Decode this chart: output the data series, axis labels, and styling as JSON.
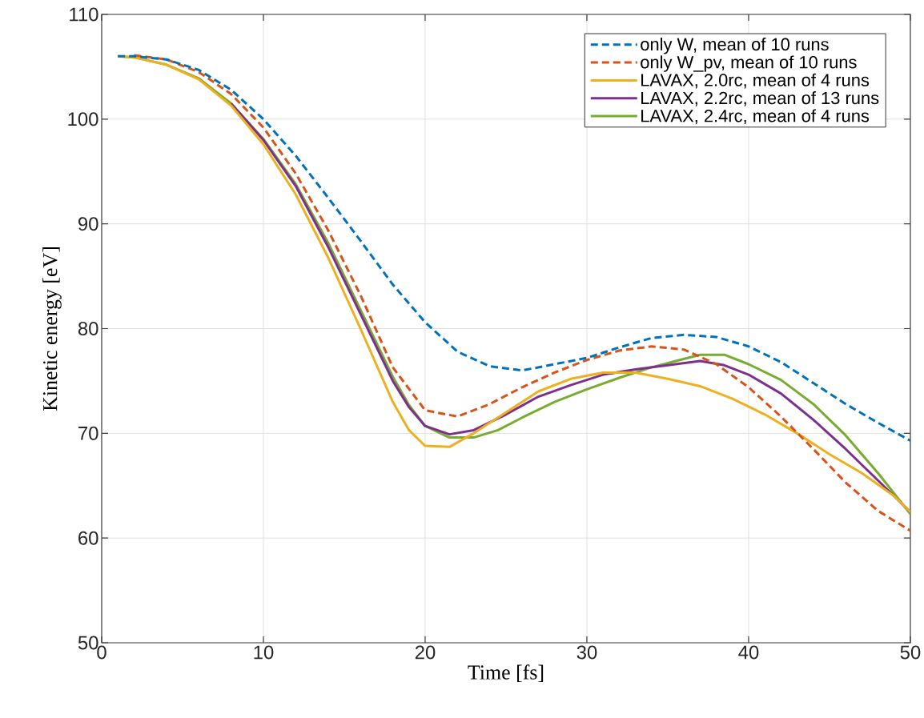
{
  "chart_data": {
    "type": "line",
    "xlabel": "Time [fs]",
    "ylabel": "Kinetic energy [eV]",
    "xlim": [
      0,
      50
    ],
    "ylim": [
      50,
      110
    ],
    "xticks": [
      0,
      10,
      20,
      30,
      40,
      50
    ],
    "yticks": [
      50,
      60,
      70,
      80,
      90,
      100,
      110
    ],
    "grid": true,
    "legend": "top right",
    "marker": "none",
    "series": [
      {
        "name": "only W, mean of 10 runs",
        "color": "#0072bd",
        "line_style": "dashed",
        "x": [
          1,
          2,
          4,
          6,
          8,
          10,
          12,
          14,
          16,
          18,
          20,
          22,
          24,
          26,
          28,
          30,
          32,
          34,
          36,
          38,
          40,
          42,
          44,
          46,
          48,
          50
        ],
        "values": [
          106,
          106,
          105.7,
          104.7,
          102.8,
          100,
          96.5,
          92.5,
          88.4,
          84.2,
          80.6,
          77.8,
          76.4,
          76,
          76.6,
          77.2,
          78.2,
          79.1,
          79.4,
          79.2,
          78.3,
          76.8,
          74.8,
          72.8,
          71,
          69.3
        ]
      },
      {
        "name": "only W_pv, mean of 10 runs",
        "color": "#d95319",
        "line_style": "dashed",
        "x": [
          2,
          4,
          6,
          8,
          10,
          12,
          14,
          16,
          18,
          20,
          22,
          24,
          26,
          28,
          30,
          32,
          34,
          36,
          38,
          40,
          42,
          44,
          46,
          48,
          50
        ],
        "values": [
          106.1,
          105.7,
          104.5,
          102.4,
          99.2,
          94.8,
          89.4,
          83.2,
          76.3,
          72.2,
          71.6,
          72.8,
          74.4,
          75.8,
          77,
          77.9,
          78.3,
          78,
          76.6,
          74.4,
          71.6,
          68.5,
          65.3,
          62.6,
          60.7
        ]
      },
      {
        "name": "LAVAX, 2.0rc, mean of 4 runs",
        "color": "#edb120",
        "line_style": "solid",
        "x": [
          1,
          2,
          4,
          6,
          8,
          10,
          12,
          14,
          16,
          18,
          19,
          20,
          21.5,
          23,
          25,
          27,
          29,
          31,
          33,
          35,
          37,
          39,
          41,
          43,
          45,
          47,
          49,
          50
        ],
        "values": [
          106,
          105.9,
          105.2,
          103.8,
          101.3,
          97.6,
          92.8,
          86.8,
          80,
          73,
          70.3,
          68.8,
          68.7,
          70,
          72,
          74,
          75.2,
          75.8,
          75.8,
          75.2,
          74.5,
          73.3,
          71.8,
          70,
          68,
          66.2,
          64,
          62.5
        ]
      },
      {
        "name": "LAVAX, 2.2rc, mean of 13 runs",
        "color": "#7e2f8e",
        "line_style": "solid",
        "x": [
          8,
          10,
          12,
          14,
          16,
          18,
          19,
          20,
          21.5,
          23,
          25,
          27,
          29,
          31,
          33,
          35,
          37,
          38.5,
          40,
          42,
          44,
          46,
          48,
          50
        ],
        "values": [
          101.5,
          98,
          93.6,
          87.8,
          81.4,
          75,
          72.5,
          70.7,
          69.9,
          70.3,
          71.8,
          73.5,
          74.6,
          75.6,
          76.1,
          76.5,
          76.9,
          76.5,
          75.6,
          73.8,
          71.3,
          68.5,
          65.5,
          62.5
        ]
      },
      {
        "name": "LAVAX, 2.4rc, mean of 4 runs",
        "color": "#77ac30",
        "line_style": "solid",
        "x": [
          1,
          2,
          4,
          6,
          8,
          10,
          12,
          14,
          16,
          18,
          19,
          20,
          21.5,
          23,
          24.5,
          26,
          28,
          30,
          32,
          34,
          35.5,
          37,
          38.5,
          40,
          42,
          44,
          46,
          48,
          50
        ],
        "values": [
          106,
          105.9,
          105.2,
          103.9,
          101.5,
          98.1,
          93.8,
          88.2,
          81.8,
          75.4,
          72.7,
          70.7,
          69.6,
          69.6,
          70.3,
          71.5,
          73,
          74.2,
          75.3,
          76.3,
          76.9,
          77.5,
          77.5,
          76.6,
          75.1,
          72.8,
          69.8,
          66.2,
          62.3
        ]
      }
    ]
  }
}
